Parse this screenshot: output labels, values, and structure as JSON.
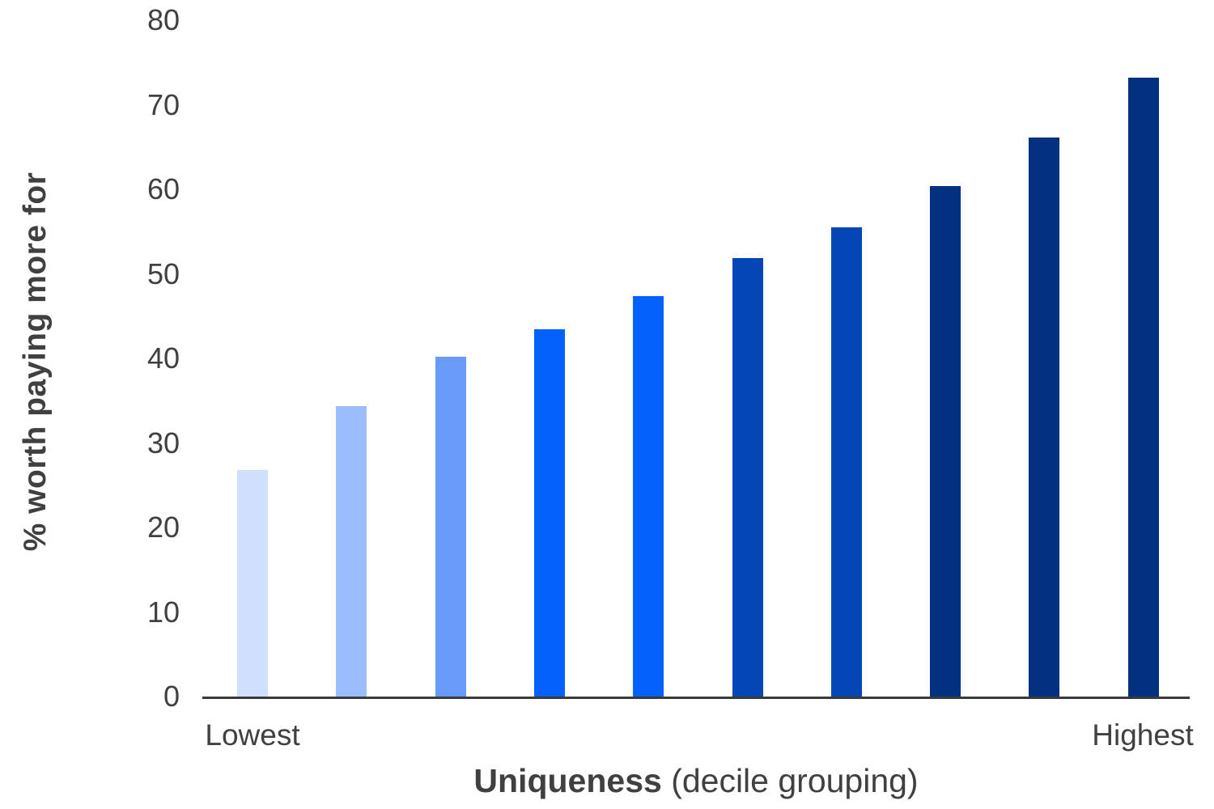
{
  "chart_data": {
    "type": "bar",
    "title": "",
    "ylabel": "% worth paying more for",
    "xlabel_bold": "Uniqueness",
    "xlabel_rest": " (decile grouping)",
    "x_end_labels": {
      "left": "Lowest",
      "right": "Highest"
    },
    "categories": [
      "Lowest",
      "",
      "",
      "",
      "",
      "",
      "",
      "",
      "",
      "Highest"
    ],
    "values": [
      26.8,
      34.4,
      40.2,
      43.4,
      47.4,
      51.9,
      55.5,
      60.4,
      66.1,
      73.2
    ],
    "bar_colors": [
      "#cfdffc",
      "#9cbdfb",
      "#689afa",
      "#0561fc",
      "#0561fc",
      "#0346b6",
      "#0346b6",
      "#03317f",
      "#03317f",
      "#03317f"
    ],
    "y_ticks": [
      0,
      10,
      20,
      30,
      40,
      50,
      60,
      70,
      80
    ],
    "ylim": [
      0,
      80
    ],
    "grid": false,
    "legend": "none",
    "axis_color": "#3a3a3a",
    "text_color": "#404040",
    "background_color": "#ffffff"
  }
}
